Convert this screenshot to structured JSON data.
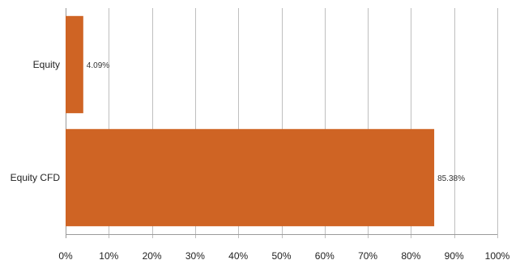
{
  "chart_data": {
    "type": "bar",
    "orientation": "horizontal",
    "categories": [
      "Equity",
      "Equity CFD"
    ],
    "values": [
      4.09,
      85.38
    ],
    "data_labels": [
      "4.09%",
      "85.38%"
    ],
    "xlim": [
      0,
      100
    ],
    "x_ticks": [
      0,
      10,
      20,
      30,
      40,
      50,
      60,
      70,
      80,
      90,
      100
    ],
    "x_tick_labels": [
      "0%",
      "10%",
      "20%",
      "30%",
      "40%",
      "50%",
      "60%",
      "70%",
      "80%",
      "90%",
      "100%"
    ],
    "grid": true,
    "legend": "none",
    "colors": {
      "bar": "#cf6424",
      "grid": "#bfbfbf",
      "axis": "#9a9a9a"
    }
  }
}
